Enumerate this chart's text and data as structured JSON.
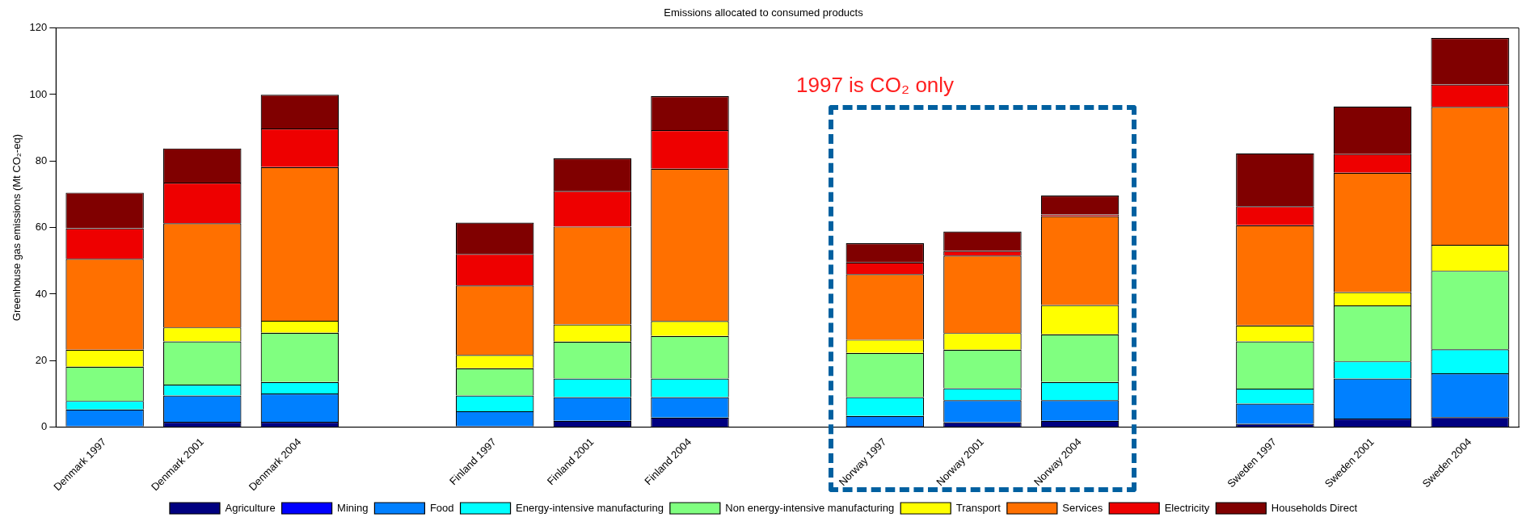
{
  "chart_data": {
    "type": "bar",
    "stacked": true,
    "title": "Emissions allocated to consumed products",
    "ylabel": "Greenhouse gas emissions (Mt CO₂-eq)",
    "categories": [
      "Denmark 1997",
      "Denmark 2001",
      "Denmark 2004",
      null,
      "Finland 1997",
      "Finland 2001",
      "Finland 2004",
      null,
      "Norway 1997",
      "Norway 2001",
      "Norway 2004",
      null,
      "Sweden 1997",
      "Sweden 2001",
      "Sweden 2004"
    ],
    "series": [
      {
        "name": "Agriculture",
        "color": "#000080",
        "values": [
          0.3,
          1.6,
          1.6,
          null,
          0.3,
          1.9,
          2.9,
          null,
          0.4,
          1.5,
          1.9,
          null,
          1.0,
          2.6,
          3.0
        ]
      },
      {
        "name": "Mining",
        "color": "#0000ff",
        "values": [
          0,
          0,
          0,
          null,
          0,
          0,
          0,
          null,
          0,
          0,
          0,
          null,
          0,
          0,
          0
        ]
      },
      {
        "name": "Food",
        "color": "#0080ff",
        "values": [
          5.0,
          7.9,
          8.5,
          null,
          4.5,
          7.1,
          6.1,
          null,
          3.0,
          6.6,
          6.2,
          null,
          6.1,
          12.0,
          13.2
        ]
      },
      {
        "name": "Energy-intensive manufacturing",
        "color": "#00ffff",
        "values": [
          2.6,
          3.3,
          3.5,
          null,
          4.7,
          5.6,
          5.6,
          null,
          5.6,
          3.6,
          5.5,
          null,
          4.5,
          5.2,
          7.2
        ]
      },
      {
        "name": "Non energy-intensive manufacturing",
        "color": "#80ff80",
        "values": [
          10.3,
          13.0,
          14.8,
          null,
          8.2,
          11.1,
          12.8,
          null,
          13.3,
          11.6,
          14.3,
          null,
          14.2,
          16.8,
          23.6
        ]
      },
      {
        "name": "Transport",
        "color": "#ffff00",
        "values": [
          5.1,
          4.2,
          3.6,
          null,
          4.0,
          5.2,
          4.5,
          null,
          4.0,
          5.0,
          8.8,
          null,
          4.8,
          4.0,
          7.8
        ]
      },
      {
        "name": "Services",
        "color": "#ff7000",
        "values": [
          27.3,
          31.3,
          46.2,
          null,
          20.9,
          29.4,
          45.8,
          null,
          19.7,
          23.3,
          26.7,
          null,
          30.1,
          35.9,
          41.5
        ]
      },
      {
        "name": "Electricity",
        "color": "#ee0000",
        "values": [
          9.2,
          12.2,
          11.6,
          null,
          9.5,
          10.7,
          11.6,
          null,
          3.5,
          1.4,
          0.5,
          null,
          5.7,
          5.6,
          6.7
        ]
      },
      {
        "name": "Households Direct",
        "color": "#800000",
        "values": [
          10.7,
          10.3,
          10.1,
          null,
          9.4,
          9.8,
          10.2,
          null,
          5.8,
          5.8,
          5.7,
          null,
          15.9,
          14.3,
          14.0
        ]
      }
    ],
    "ylim": [
      0,
      120
    ],
    "yticks": [
      0,
      20,
      40,
      60,
      80,
      100,
      120
    ],
    "grid": false,
    "legend": "bottom",
    "annotations": [
      "1997 is CO₂ only"
    ]
  }
}
